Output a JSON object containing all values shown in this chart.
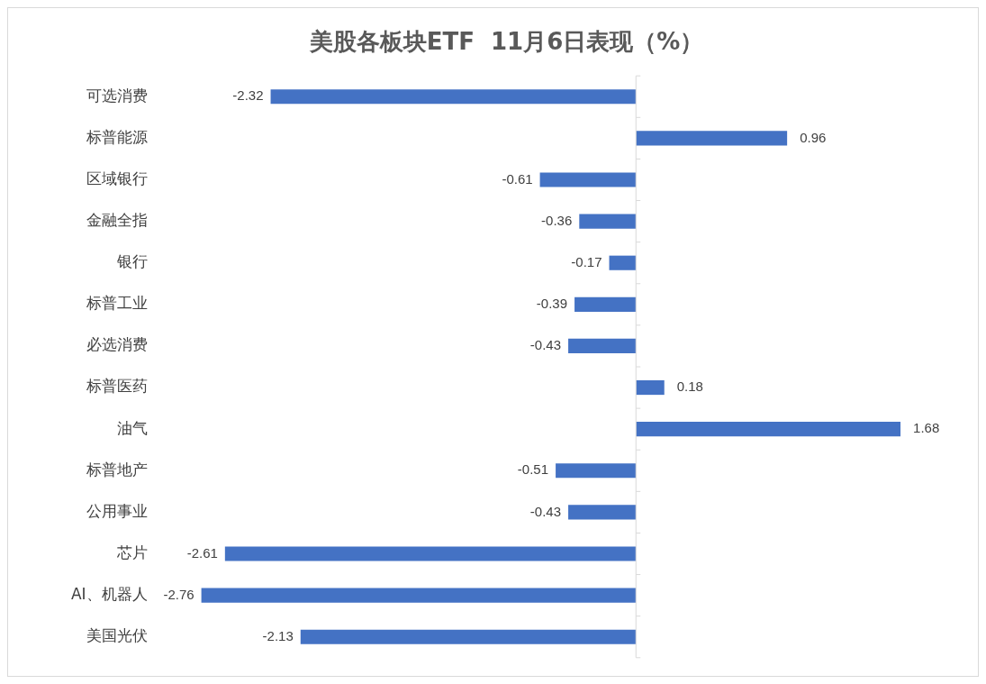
{
  "chart_data": {
    "type": "bar",
    "orientation": "horizontal",
    "title": "美股各板块ETF  11月6日表现（%）",
    "categories": [
      "可选消费",
      "标普能源",
      "区域银行",
      "金融全指",
      "银行",
      "标普工业",
      "必选消费",
      "标普医药",
      "油气",
      "标普地产",
      "公用事业",
      "芯片",
      "AI、机器人",
      "美国光伏"
    ],
    "values": [
      -2.32,
      0.96,
      -0.61,
      -0.36,
      -0.17,
      -0.39,
      -0.43,
      0.18,
      1.68,
      -0.51,
      -0.43,
      -2.61,
      -2.76,
      -2.13
    ],
    "color": "#4472c4",
    "data_labels": true,
    "grid": false,
    "legend": false
  }
}
